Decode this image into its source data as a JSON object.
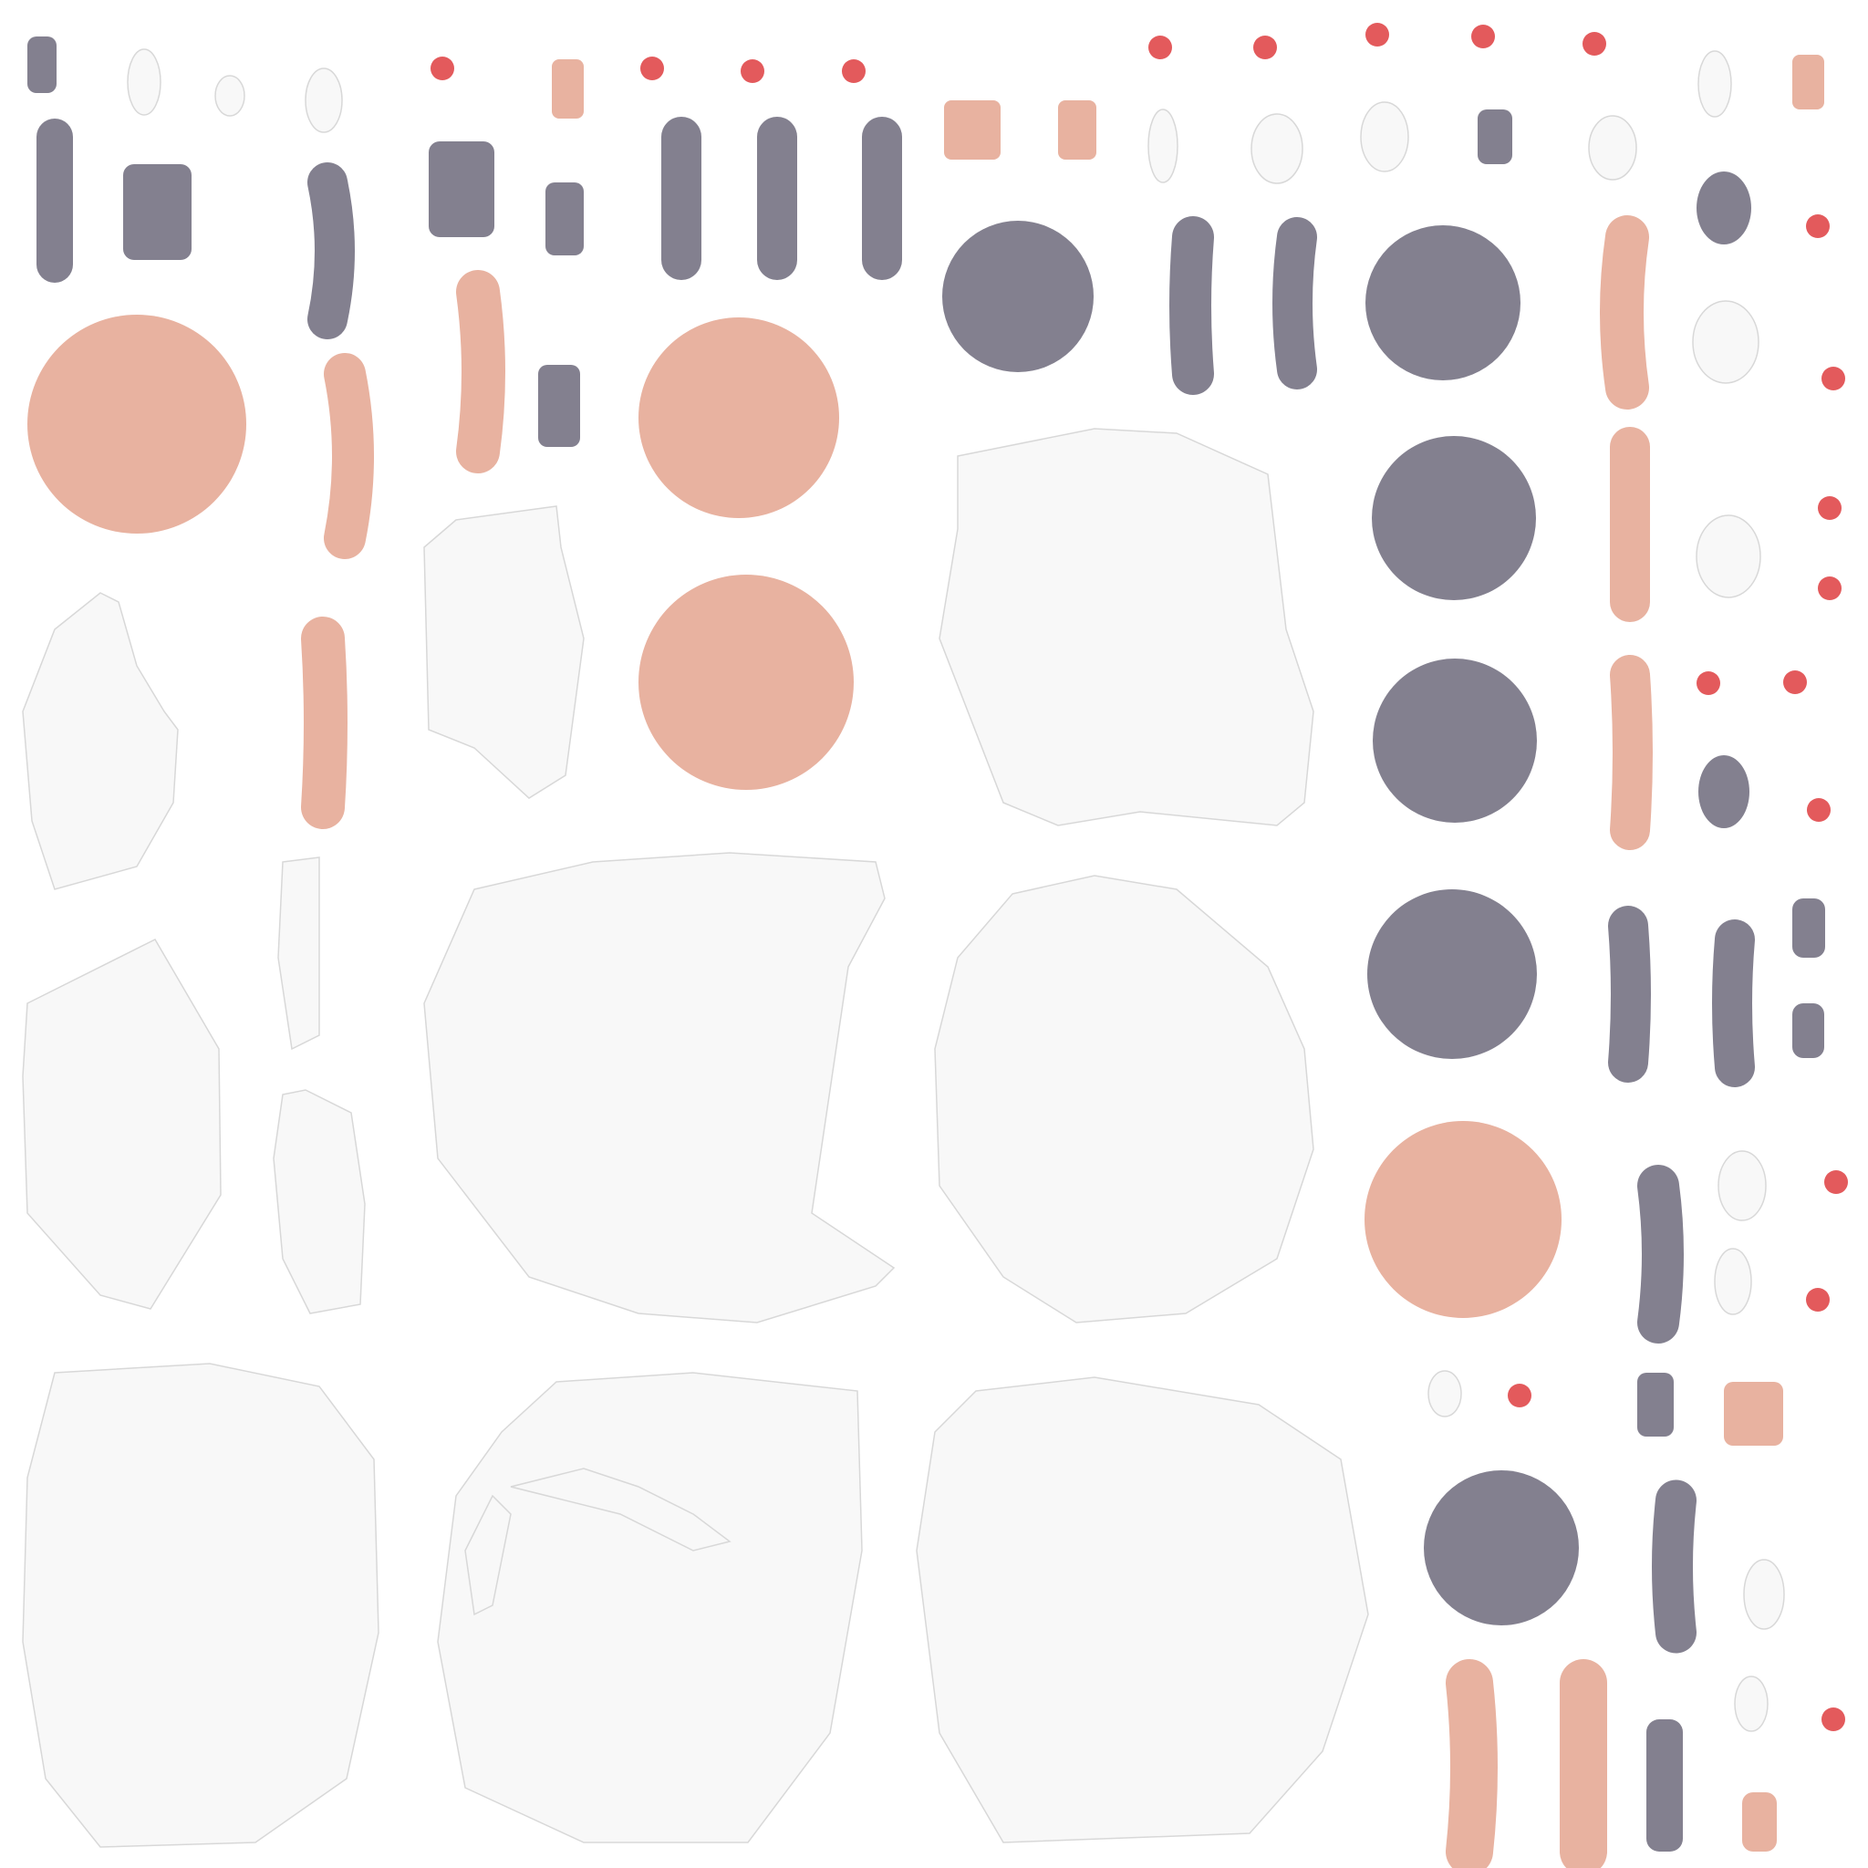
{
  "colors": {
    "background": "#ffffff",
    "slate": "#83808f",
    "peach": "#e8b2a0",
    "coral": "#e35a5c",
    "offwhite": "#f8f8f8",
    "offwhite_stroke": "#d8d8d8"
  },
  "note_text": ""
}
